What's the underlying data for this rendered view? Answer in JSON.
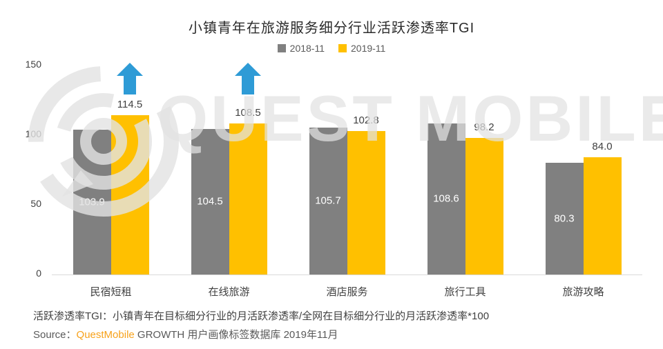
{
  "title": "小镇青年在旅游服务细分行业活跃渗透率TGI",
  "watermark_text": "QUEST MOBILE",
  "chart_data": {
    "type": "bar",
    "categories": [
      "民宿短租",
      "在线旅游",
      "酒店服务",
      "旅行工具",
      "旅游攻略"
    ],
    "series": [
      {
        "name": "2018-11",
        "color": "#808080",
        "values": [
          103.9,
          104.5,
          105.7,
          108.6,
          80.3
        ]
      },
      {
        "name": "2019-11",
        "color": "#FFC000",
        "values": [
          114.5,
          108.5,
          102.8,
          98.2,
          84.0
        ]
      }
    ],
    "ylim": [
      0,
      150
    ],
    "yticks": [
      0,
      50,
      100,
      150
    ],
    "grid": false,
    "legend_position": "top-center",
    "value_label_decimals": 1,
    "arrow_categories": [
      "民宿短租",
      "在线旅游"
    ],
    "arrow_color": "#2E9BD6"
  },
  "footnote": "活跃渗透率TGI：小镇青年在目标细分行业的月活跃渗透率/全网在目标细分行业的月活跃渗透率*100",
  "source": {
    "prefix": "Source：",
    "brand": "QuestMobile",
    "rest": " GROWTH 用户画像标签数据库 2019年11月"
  }
}
